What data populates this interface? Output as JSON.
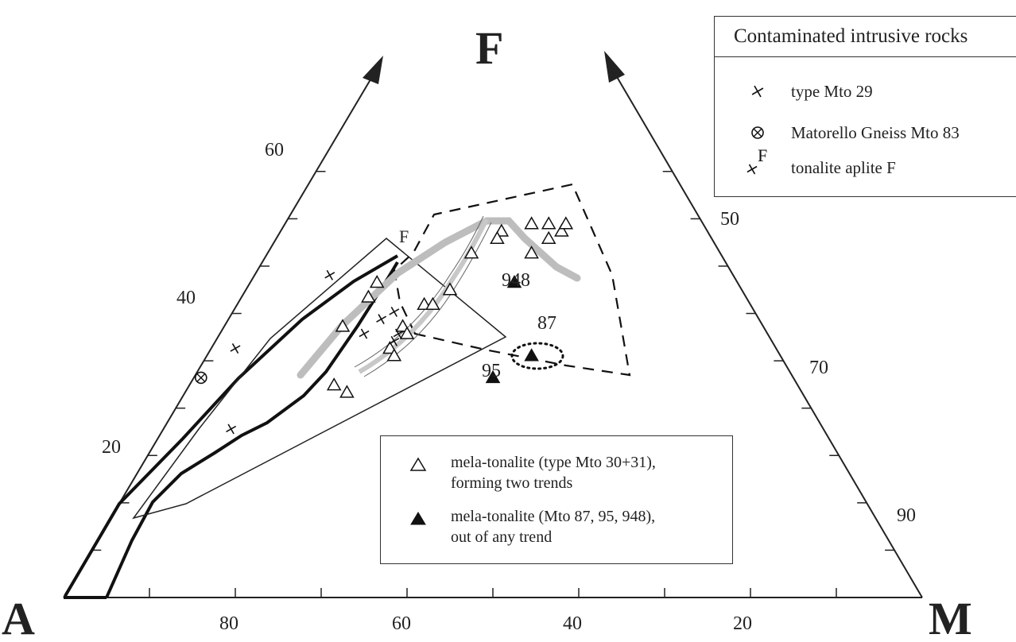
{
  "chart_data": {
    "type": "scatter",
    "diagram": "ternary AFM",
    "vertices": {
      "A": "A",
      "F": "F",
      "M": "M"
    },
    "left_axis_ticks": [
      "20",
      "40",
      "60"
    ],
    "right_axis_ticks": [
      "50",
      "70",
      "90"
    ],
    "bottom_axis_ticks": [
      "80",
      "60",
      "40",
      "20"
    ],
    "point_labels": {
      "F": "F",
      "p948": "948",
      "p87": "87",
      "p95": "95"
    },
    "series": [
      {
        "marker": "open-triangle",
        "points_AFM": [
          [
            22,
            47,
            31
          ],
          [
            19,
            49,
            32
          ],
          [
            17,
            50,
            33
          ],
          [
            16,
            51,
            33
          ],
          [
            18,
            51,
            31
          ],
          [
            20,
            51,
            29
          ],
          [
            24,
            50,
            26
          ],
          [
            25,
            49,
            26
          ],
          [
            29,
            47,
            24
          ],
          [
            34,
            42,
            24
          ],
          [
            38,
            40,
            22
          ],
          [
            37,
            40,
            23
          ],
          [
            42,
            37,
            21
          ],
          [
            42,
            36,
            22
          ],
          [
            45,
            34,
            21
          ],
          [
            45,
            33,
            22
          ],
          [
            54,
            29,
            17
          ],
          [
            53,
            28,
            19
          ],
          [
            42,
            43,
            15
          ],
          [
            44,
            41,
            15
          ],
          [
            49,
            37,
            14
          ]
        ]
      },
      {
        "marker": "filled-triangle",
        "points_AFM": [
          [
            26,
            43,
            31
          ],
          [
            29,
            33,
            38
          ],
          [
            35,
            30,
            35
          ]
        ],
        "labels": [
          "948",
          "87",
          "95"
        ]
      },
      {
        "marker": "cross",
        "points_AFM": [
          [
            63,
            34,
            3
          ],
          [
            43,
            36,
            21
          ],
          [
            42,
            39,
            19
          ],
          [
            44,
            38,
            18
          ],
          [
            47,
            36,
            17
          ],
          [
            44,
            35,
            21
          ],
          [
            69,
            23,
            8
          ]
        ]
      },
      {
        "marker": "circle-cross",
        "points_AFM": [
          [
            69,
            30,
            1
          ]
        ]
      },
      {
        "marker": "cross-F",
        "points_AFM": [
          [
            47,
            44,
            9
          ]
        ],
        "labels": [
          "F"
        ]
      }
    ]
  },
  "legend_top": {
    "title": "Contaminated intrusive rocks",
    "items": [
      {
        "symbol": "cross",
        "label": "type Mto 29"
      },
      {
        "symbol": "circle-cross",
        "label": "Matorello Gneiss Mto 83"
      },
      {
        "symbol": "cross-F",
        "symbol_text": "F",
        "label": "tonalite aplite F"
      }
    ]
  },
  "legend_bottom": {
    "items": [
      {
        "symbol": "open-triangle",
        "line1": "mela-tonalite (type Mto 30+31),",
        "line2": "forming two trends"
      },
      {
        "symbol": "filled-triangle",
        "line1": "mela-tonalite (Mto 87, 95, 948),",
        "line2": "out of any trend"
      }
    ]
  }
}
